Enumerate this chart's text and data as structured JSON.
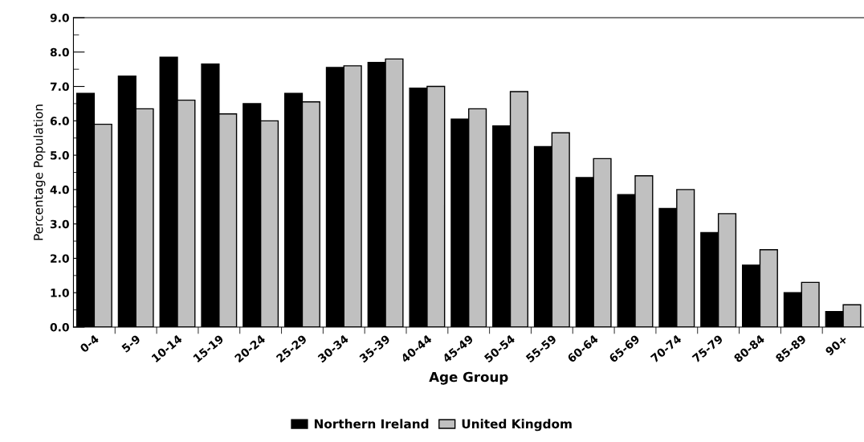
{
  "chart_data": {
    "type": "bar",
    "xlabel": "Age Group",
    "ylabel": "Percentage Population",
    "categories": [
      "0-4",
      "5-9",
      "10-14",
      "15-19",
      "20-24",
      "25-29",
      "30-34",
      "35-39",
      "40-44",
      "45-49",
      "50-54",
      "55-59",
      "60-64",
      "65-69",
      "70-74",
      "75-79",
      "80-84",
      "85-89",
      "90+"
    ],
    "series": [
      {
        "name": "Northern Ireland",
        "color": "#000000",
        "values": [
          6.8,
          7.3,
          7.85,
          7.65,
          6.5,
          6.8,
          7.55,
          7.7,
          6.95,
          6.05,
          5.85,
          5.25,
          4.35,
          3.85,
          3.45,
          2.75,
          1.8,
          1.0,
          0.45
        ]
      },
      {
        "name": "United Kingdom",
        "color": "#c0c0c0",
        "values": [
          5.9,
          6.35,
          6.6,
          6.2,
          6.0,
          6.55,
          7.6,
          7.8,
          7.0,
          6.35,
          6.85,
          5.65,
          4.9,
          4.4,
          4.0,
          3.3,
          2.25,
          1.3,
          0.65
        ]
      }
    ],
    "ylim": [
      0,
      9
    ],
    "yticks": [
      {
        "value": 0,
        "label": "0.0"
      },
      {
        "value": 1,
        "label": "1.0"
      },
      {
        "value": 2,
        "label": "2.0"
      },
      {
        "value": 3,
        "label": "3.0"
      },
      {
        "value": 4,
        "label": "4.0"
      },
      {
        "value": 5,
        "label": "5.0"
      },
      {
        "value": 6,
        "label": "6.0"
      },
      {
        "value": 7,
        "label": "7.0"
      },
      {
        "value": 8,
        "label": "8.0"
      },
      {
        "value": 9,
        "label": "9.0"
      }
    ],
    "grid": false,
    "legend": "bottom"
  }
}
